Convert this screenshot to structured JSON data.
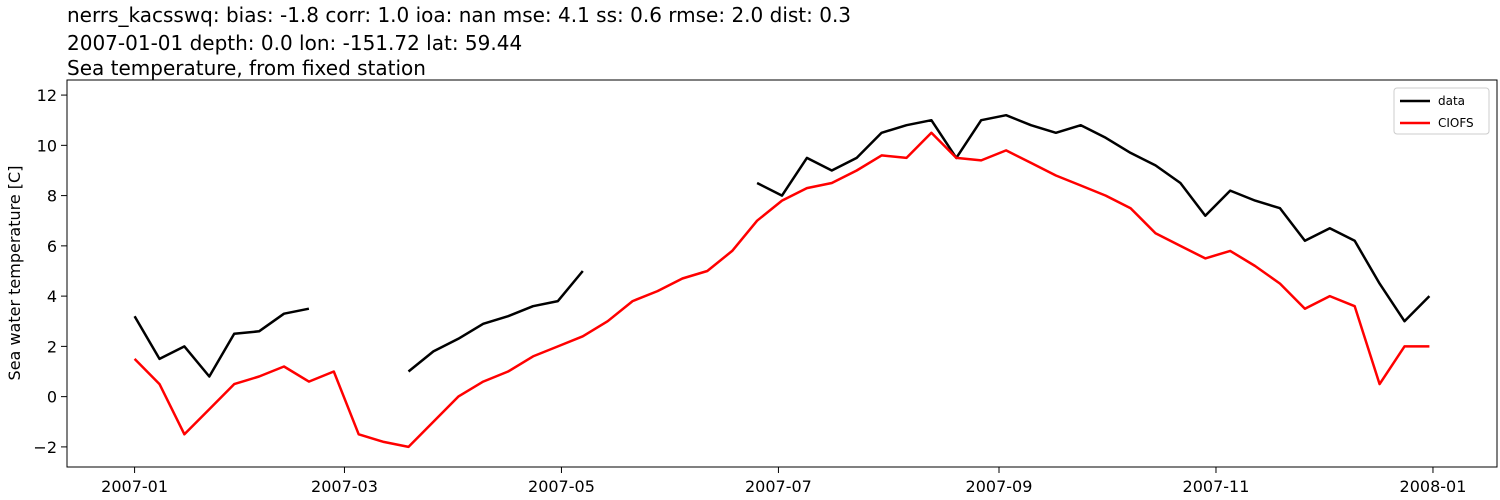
{
  "chart_data": {
    "type": "line",
    "title": [
      "nerrs_kacsswq: bias: -1.8  corr: 1.0  ioa: nan  mse: 4.1  ss: 0.6  rmse: 2.0  dist: 0.3",
      "2007-01-01 depth: 0.0 lon: -151.72 lat: 59.44",
      "Sea temperature, from fixed station"
    ],
    "ylabel": "Sea water temperature [C]",
    "x": [
      "2007-01-01",
      "2007-01-08",
      "2007-01-15",
      "2007-01-22",
      "2007-01-29",
      "2007-02-05",
      "2007-02-12",
      "2007-02-19",
      "2007-02-26",
      "2007-03-05",
      "2007-03-12",
      "2007-03-19",
      "2007-03-26",
      "2007-04-02",
      "2007-04-09",
      "2007-04-16",
      "2007-04-23",
      "2007-04-30",
      "2007-05-07",
      "2007-05-14",
      "2007-05-21",
      "2007-05-28",
      "2007-06-04",
      "2007-06-11",
      "2007-06-18",
      "2007-06-25",
      "2007-07-02",
      "2007-07-09",
      "2007-07-16",
      "2007-07-23",
      "2007-07-30",
      "2007-08-06",
      "2007-08-13",
      "2007-08-20",
      "2007-08-27",
      "2007-09-03",
      "2007-09-10",
      "2007-09-17",
      "2007-09-24",
      "2007-10-01",
      "2007-10-08",
      "2007-10-15",
      "2007-10-22",
      "2007-10-29",
      "2007-11-05",
      "2007-11-12",
      "2007-11-19",
      "2007-11-26",
      "2007-12-03",
      "2007-12-10",
      "2007-12-17",
      "2007-12-24",
      "2007-12-31"
    ],
    "series": [
      {
        "name": "data",
        "color": "#000000",
        "values": [
          3.2,
          1.5,
          2.0,
          0.8,
          2.5,
          2.6,
          3.3,
          3.5,
          null,
          null,
          null,
          1.0,
          1.8,
          2.3,
          2.9,
          3.2,
          3.6,
          3.8,
          5.0,
          null,
          null,
          null,
          null,
          null,
          null,
          8.5,
          8.0,
          9.5,
          9.0,
          9.5,
          10.5,
          10.8,
          11.0,
          9.5,
          11.0,
          11.2,
          10.8,
          10.5,
          10.8,
          10.3,
          9.7,
          9.2,
          8.5,
          7.2,
          8.2,
          7.8,
          7.5,
          6.2,
          6.7,
          6.2,
          4.5,
          3.0,
          4.0
        ]
      },
      {
        "name": "CIOFS",
        "color": "#ff0000",
        "values": [
          1.5,
          0.5,
          -1.5,
          -0.5,
          0.5,
          0.8,
          1.2,
          0.6,
          1.0,
          -1.5,
          -1.8,
          -2.0,
          -1.0,
          0.0,
          0.6,
          1.0,
          1.6,
          2.0,
          2.4,
          3.0,
          3.8,
          4.2,
          4.7,
          5.0,
          5.8,
          7.0,
          7.8,
          8.3,
          8.5,
          9.0,
          9.6,
          9.5,
          10.5,
          9.5,
          9.4,
          9.8,
          9.3,
          8.8,
          8.4,
          8.0,
          7.5,
          6.5,
          6.0,
          5.5,
          5.8,
          5.2,
          4.5,
          3.5,
          4.0,
          3.6,
          0.5,
          2.0,
          2.0
        ]
      }
    ],
    "xlim": [
      "2006-12-13",
      "2008-01-19"
    ],
    "xticks": [
      {
        "value": "2007-01-01",
        "label": "2007-01"
      },
      {
        "value": "2007-03-01",
        "label": "2007-03"
      },
      {
        "value": "2007-05-01",
        "label": "2007-05"
      },
      {
        "value": "2007-07-01",
        "label": "2007-07"
      },
      {
        "value": "2007-09-01",
        "label": "2007-09"
      },
      {
        "value": "2007-11-01",
        "label": "2007-11"
      },
      {
        "value": "2008-01-01",
        "label": "2008-01"
      }
    ],
    "ylim": [
      -2.8,
      12.6
    ],
    "yticks": [
      {
        "value": -2,
        "label": "−2"
      },
      0,
      2,
      4,
      6,
      8,
      10,
      12
    ],
    "legend": "upper right"
  }
}
